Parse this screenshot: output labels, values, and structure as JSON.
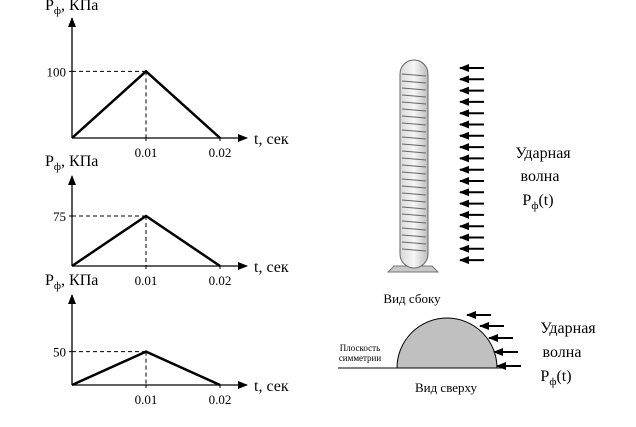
{
  "chart_data": [
    {
      "type": "line",
      "y_label": "Pф, КПа",
      "x_label": "t, сек",
      "x": [
        0,
        0.01,
        0.02
      ],
      "values": [
        0,
        100,
        0
      ],
      "color": "#000000",
      "xlim": [
        0,
        0.025
      ],
      "ylim": [
        0,
        150
      ],
      "xticks": [
        0.01,
        0.02
      ],
      "yticks": [
        100
      ]
    },
    {
      "type": "line",
      "y_label": "Pф, КПа",
      "x_label": "t, сек",
      "x": [
        0,
        0.01,
        0.02
      ],
      "values": [
        0,
        75,
        0
      ],
      "color": "#000000",
      "xlim": [
        0,
        0.025
      ],
      "ylim": [
        0,
        150
      ],
      "xticks": [
        0.01,
        0.02
      ],
      "yticks": [
        75
      ]
    },
    {
      "type": "line",
      "y_label": "Pф, КПа",
      "x_label": "t, сек",
      "x": [
        0,
        0.01,
        0.02
      ],
      "values": [
        0,
        50,
        0
      ],
      "color": "#000000",
      "xlim": [
        0,
        0.025
      ],
      "ylim": [
        0,
        150
      ],
      "xticks": [
        0.01,
        0.02
      ],
      "yticks": [
        50
      ]
    }
  ],
  "diagram": {
    "side_view": {
      "caption": "Вид сбоку",
      "wave_label": [
        "Ударная",
        "волна",
        "Pф(t)"
      ]
    },
    "top_view": {
      "caption": "Вид сверху",
      "plane_label": [
        "Плоскость",
        "симметрии"
      ],
      "wave_label": [
        "Ударная",
        "волна",
        "Pф(t)"
      ]
    }
  }
}
